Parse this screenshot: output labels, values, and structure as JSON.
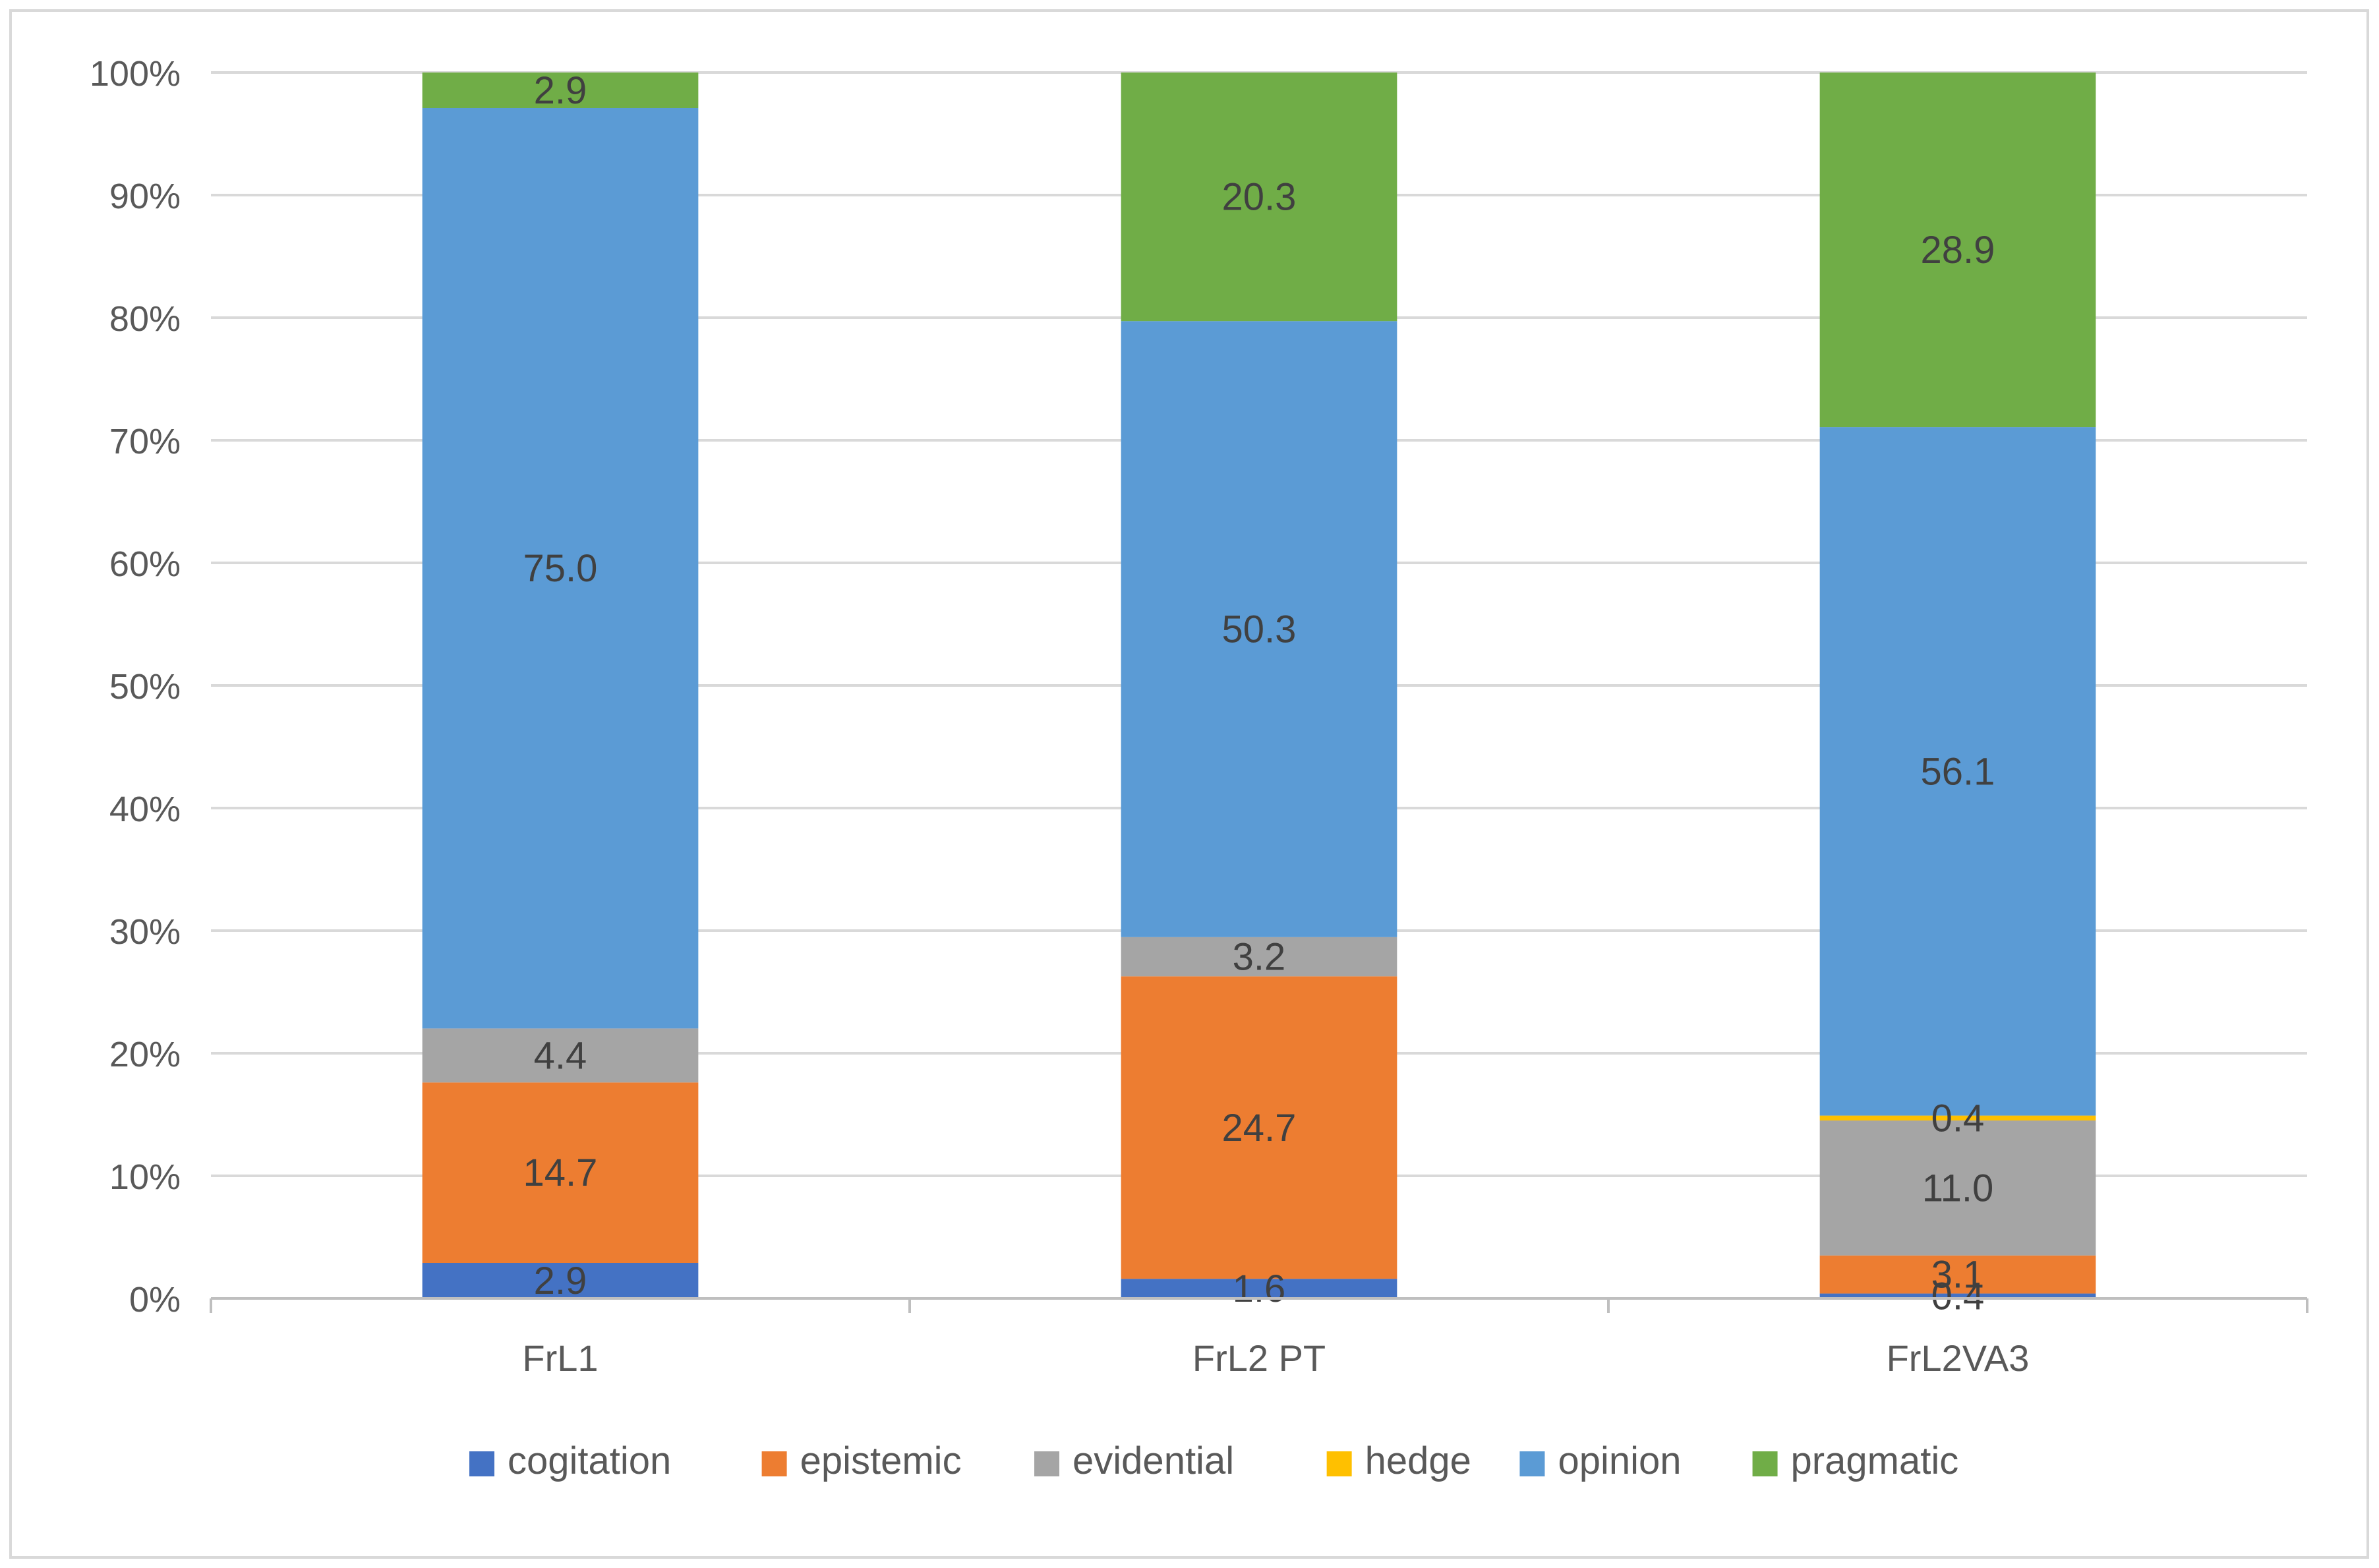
{
  "chart_data": {
    "type": "bar",
    "stacked": true,
    "percent_stacked": true,
    "title": "",
    "xlabel": "",
    "ylabel": "",
    "ylim": [
      0,
      100
    ],
    "y_tick_labels": [
      "0%",
      "10%",
      "20%",
      "30%",
      "40%",
      "50%",
      "60%",
      "70%",
      "80%",
      "90%",
      "100%"
    ],
    "categories": [
      "FrL1",
      "FrL2 PT",
      "FrL2VA3"
    ],
    "series": [
      {
        "name": "cogitation",
        "color": "#4472c4",
        "values": [
          2.9,
          1.6,
          0.4
        ],
        "labels": [
          "2.9",
          "1.6",
          "0.4"
        ]
      },
      {
        "name": "epistemic",
        "color": "#ed7d31",
        "values": [
          14.7,
          24.7,
          3.1
        ],
        "labels": [
          "14.7",
          "24.7",
          "3.1"
        ]
      },
      {
        "name": "evidential",
        "color": "#a5a5a5",
        "values": [
          4.4,
          3.2,
          11.0
        ],
        "labels": [
          "4.4",
          "3.2",
          "11.0"
        ]
      },
      {
        "name": "hedge",
        "color": "#ffc000",
        "values": [
          0,
          0,
          0.4
        ],
        "labels": [
          "",
          "",
          "0.4"
        ]
      },
      {
        "name": "opinion",
        "color": "#5b9bd5",
        "values": [
          75.0,
          50.3,
          56.1
        ],
        "labels": [
          "75.0",
          "50.3",
          "56.1"
        ]
      },
      {
        "name": "pragmatic",
        "color": "#70ad47",
        "values": [
          2.9,
          20.3,
          28.9
        ],
        "labels": [
          "2.9",
          "20.3",
          "28.9"
        ]
      }
    ],
    "grid": true,
    "legend_position": "bottom",
    "colors": {
      "grid": "#d9d9d9",
      "axis": "#bfbfbf",
      "text": "#595959",
      "data_label": "#404040"
    }
  }
}
